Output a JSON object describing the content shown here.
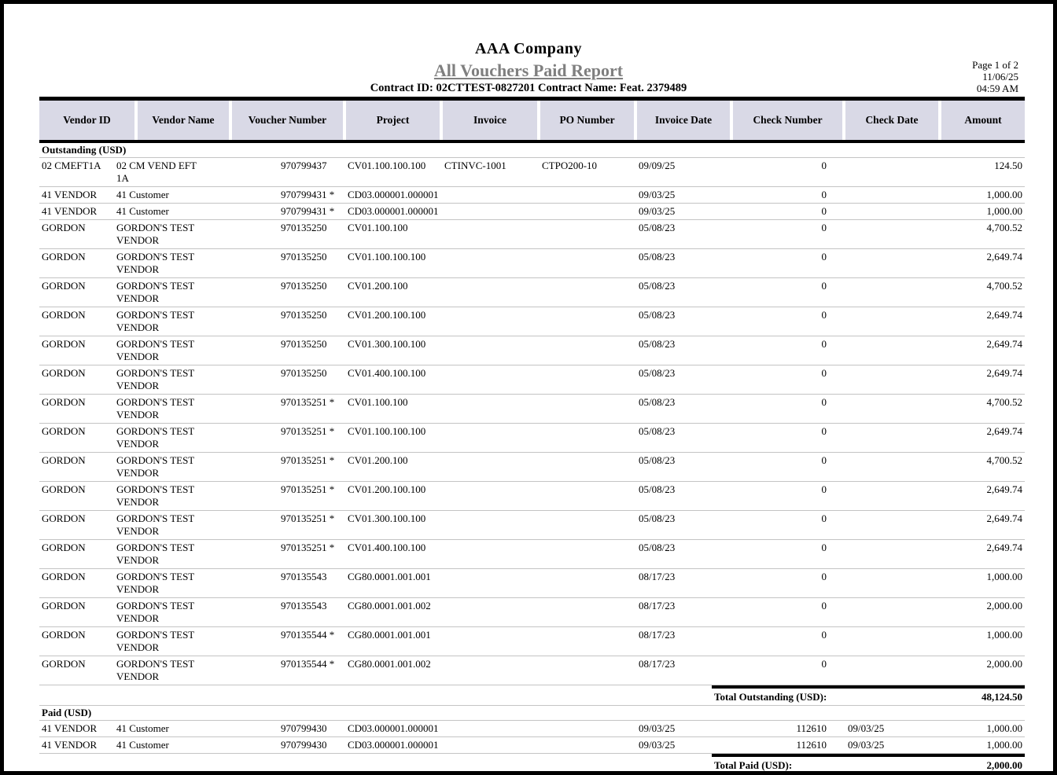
{
  "header": {
    "company": "AAA Company",
    "title": "All Vouchers Paid Report",
    "title_color": "#7f7f7f",
    "contract_line": "Contract ID: 02CTTEST-0827201 Contract Name: Feat. 2379489",
    "page_info": "Page 1 of 2",
    "date": "11/06/25",
    "time": "04:59 AM"
  },
  "table": {
    "header_bg": "#d9d9e6",
    "rule_color": "#c4c4c4",
    "columns": [
      "Vendor ID",
      "Vendor Name",
      "Voucher Number",
      "Project",
      "Invoice",
      "PO Number",
      "Invoice Date",
      "Check Number",
      "Check Date",
      "Amount"
    ],
    "row_keys": [
      "vendor-id",
      "vendor-name",
      "voucher-number",
      "project",
      "invoice",
      "po-number",
      "invoice-date",
      "check-number",
      "check-date",
      "amount"
    ],
    "sections": [
      {
        "label": "Outstanding (USD)",
        "total_label": "Total Outstanding (USD):",
        "total_amount": "48,124.50",
        "rows": [
          [
            "02 CMEFT1A",
            "02 CM VEND EFT 1A",
            "970799437",
            "CV01.100.100.100",
            "CTINVC-1001",
            "CTPO200-10",
            "09/09/25",
            "0",
            "",
            "124.50"
          ],
          [
            "41 VENDOR",
            "41 Customer",
            "970799431 *",
            "CD03.000001.000001",
            "",
            "",
            "09/03/25",
            "0",
            "",
            "1,000.00"
          ],
          [
            "41 VENDOR",
            "41 Customer",
            "970799431 *",
            "CD03.000001.000001",
            "",
            "",
            "09/03/25",
            "0",
            "",
            "1,000.00"
          ],
          [
            "GORDON",
            "GORDON'S TEST VENDOR",
            "970135250",
            "CV01.100.100",
            "",
            "",
            "05/08/23",
            "0",
            "",
            "4,700.52"
          ],
          [
            "GORDON",
            "GORDON'S TEST VENDOR",
            "970135250",
            "CV01.100.100.100",
            "",
            "",
            "05/08/23",
            "0",
            "",
            "2,649.74"
          ],
          [
            "GORDON",
            "GORDON'S TEST VENDOR",
            "970135250",
            "CV01.200.100",
            "",
            "",
            "05/08/23",
            "0",
            "",
            "4,700.52"
          ],
          [
            "GORDON",
            "GORDON'S TEST VENDOR",
            "970135250",
            "CV01.200.100.100",
            "",
            "",
            "05/08/23",
            "0",
            "",
            "2,649.74"
          ],
          [
            "GORDON",
            "GORDON'S TEST VENDOR",
            "970135250",
            "CV01.300.100.100",
            "",
            "",
            "05/08/23",
            "0",
            "",
            "2,649.74"
          ],
          [
            "GORDON",
            "GORDON'S TEST VENDOR",
            "970135250",
            "CV01.400.100.100",
            "",
            "",
            "05/08/23",
            "0",
            "",
            "2,649.74"
          ],
          [
            "GORDON",
            "GORDON'S TEST VENDOR",
            "970135251 *",
            "CV01.100.100",
            "",
            "",
            "05/08/23",
            "0",
            "",
            "4,700.52"
          ],
          [
            "GORDON",
            "GORDON'S TEST VENDOR",
            "970135251 *",
            "CV01.100.100.100",
            "",
            "",
            "05/08/23",
            "0",
            "",
            "2,649.74"
          ],
          [
            "GORDON",
            "GORDON'S TEST VENDOR",
            "970135251 *",
            "CV01.200.100",
            "",
            "",
            "05/08/23",
            "0",
            "",
            "4,700.52"
          ],
          [
            "GORDON",
            "GORDON'S TEST VENDOR",
            "970135251 *",
            "CV01.200.100.100",
            "",
            "",
            "05/08/23",
            "0",
            "",
            "2,649.74"
          ],
          [
            "GORDON",
            "GORDON'S TEST VENDOR",
            "970135251 *",
            "CV01.300.100.100",
            "",
            "",
            "05/08/23",
            "0",
            "",
            "2,649.74"
          ],
          [
            "GORDON",
            "GORDON'S TEST VENDOR",
            "970135251 *",
            "CV01.400.100.100",
            "",
            "",
            "05/08/23",
            "0",
            "",
            "2,649.74"
          ],
          [
            "GORDON",
            "GORDON'S TEST VENDOR",
            "970135543",
            "CG80.0001.001.001",
            "",
            "",
            "08/17/23",
            "0",
            "",
            "1,000.00"
          ],
          [
            "GORDON",
            "GORDON'S TEST VENDOR",
            "970135543",
            "CG80.0001.001.002",
            "",
            "",
            "08/17/23",
            "0",
            "",
            "2,000.00"
          ],
          [
            "GORDON",
            "GORDON'S TEST VENDOR",
            "970135544 *",
            "CG80.0001.001.001",
            "",
            "",
            "08/17/23",
            "0",
            "",
            "1,000.00"
          ],
          [
            "GORDON",
            "GORDON'S TEST VENDOR",
            "970135544 *",
            "CG80.0001.001.002",
            "",
            "",
            "08/17/23",
            "0",
            "",
            "2,000.00"
          ]
        ]
      },
      {
        "label": "Paid (USD)",
        "total_label": "Total Paid (USD):",
        "total_amount": "2,000.00",
        "rows": [
          [
            "41 VENDOR",
            "41 Customer",
            "970799430",
            "CD03.000001.000001",
            "",
            "",
            "09/03/25",
            "112610",
            "09/03/25",
            "1,000.00"
          ],
          [
            "41 VENDOR",
            "41 Customer",
            "970799430",
            "CD03.000001.000001",
            "",
            "",
            "09/03/25",
            "112610",
            "09/03/25",
            "1,000.00"
          ]
        ]
      }
    ]
  }
}
